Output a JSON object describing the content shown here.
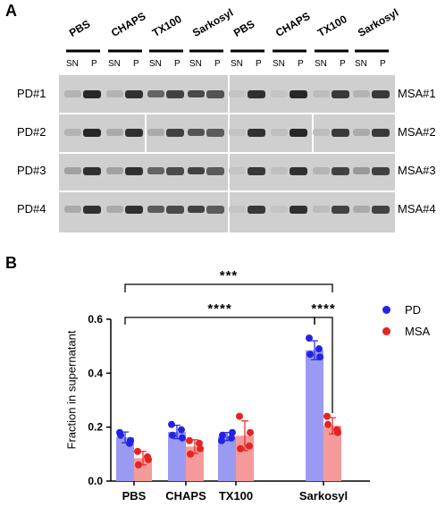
{
  "panel_a": {
    "letter": "A",
    "detergents": [
      "PBS",
      "CHAPS",
      "TX100",
      "Sarkosyl",
      "PBS",
      "CHAPS",
      "TX100",
      "Sarkosyl"
    ],
    "lane_labels": [
      "SN",
      "P"
    ],
    "left_rows": [
      "PD#1",
      "PD#2",
      "PD#3",
      "PD#4"
    ],
    "right_rows": [
      "MSA#1",
      "MSA#2",
      "MSA#3",
      "MSA#4"
    ]
  },
  "panel_b": {
    "letter": "B",
    "legend": [
      {
        "name": "PD",
        "color": "#2323e6"
      },
      {
        "name": "MSA",
        "color": "#e62323"
      }
    ],
    "significance": {
      "top": "***",
      "pbs_vs_sarkosyl": "****",
      "sarkosyl_pd_vs_msa": "****"
    }
  },
  "chart_data": {
    "type": "bar",
    "title": "",
    "xlabel": "",
    "ylabel": "Fraction in supernatant",
    "ylim": [
      0,
      0.6
    ],
    "yticks": [
      "0.0",
      "0.2",
      "0.4",
      "0.6"
    ],
    "categories": [
      "PBS",
      "CHAPS",
      "TX100",
      "Sarkosyl"
    ],
    "series": [
      {
        "name": "PD",
        "color": "#2323e6",
        "bar_color": "#9a9af2",
        "values": [
          0.162,
          0.182,
          0.165,
          0.485
        ],
        "errors": [
          0.02,
          0.025,
          0.015,
          0.035
        ],
        "points": [
          [
            0.18,
            0.15,
            0.17,
            0.14
          ],
          [
            0.21,
            0.16,
            0.17,
            0.19
          ],
          [
            0.15,
            0.18,
            0.17,
            0.16
          ],
          [
            0.53,
            0.46,
            0.47,
            0.49
          ]
        ]
      },
      {
        "name": "MSA",
        "color": "#e62323",
        "bar_color": "#f49a9a",
        "values": [
          0.085,
          0.128,
          0.168,
          0.205
        ],
        "errors": [
          0.025,
          0.025,
          0.055,
          0.03
        ],
        "points": [
          [
            0.11,
            0.08,
            0.06,
            0.09
          ],
          [
            0.15,
            0.12,
            0.1,
            0.14
          ],
          [
            0.24,
            0.18,
            0.12,
            0.13
          ],
          [
            0.24,
            0.18,
            0.21,
            0.19
          ]
        ]
      }
    ],
    "grid": false,
    "legend_position": "right"
  }
}
